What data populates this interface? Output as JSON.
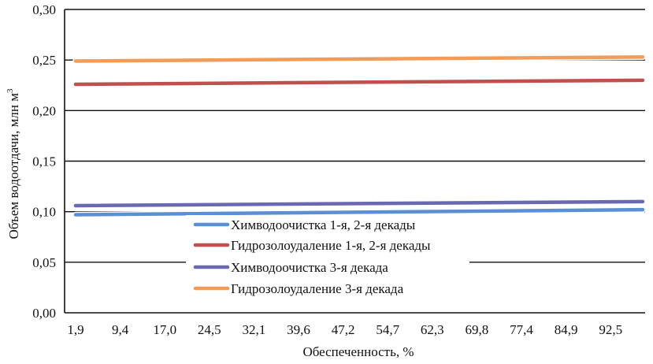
{
  "chart_data": {
    "type": "line",
    "title": "",
    "xlabel": "Обеспеченность, %",
    "ylabel": "Объем водоотдачи, млн м",
    "ylabel_sup": "3",
    "x_tick_labels": [
      "1,9",
      "9,4",
      "17,0",
      "24,5",
      "32,1",
      "39,6",
      "47,2",
      "54,7",
      "62,3",
      "69,8",
      "77,4",
      "84,9",
      "92,5"
    ],
    "y_tick_labels": [
      "0,00",
      "0,05",
      "0,10",
      "0,15",
      "0,20",
      "0,25",
      "0,30"
    ],
    "ylim": [
      0,
      0.3
    ],
    "grid": "horizontal",
    "legend_position": "center-left",
    "series": [
      {
        "name": "Химводоочистка 1-я, 2-я декады",
        "color": "#5b8fd4",
        "x_range": [
          1.9,
          98.1
        ],
        "values": [
          0.097,
          0.102
        ]
      },
      {
        "name": "Гидрозолоудаление 1-я, 2-я декады",
        "color": "#c0504d",
        "x_range": [
          1.9,
          98.1
        ],
        "values": [
          0.226,
          0.23
        ]
      },
      {
        "name": "Химводоочистка 3-я декада",
        "color": "#6a68b0",
        "x_range": [
          1.9,
          98.1
        ],
        "values": [
          0.106,
          0.11
        ]
      },
      {
        "name": "Гидрозолоудаление 3-я декада",
        "color": "#f39c5a",
        "x_range": [
          1.9,
          98.1
        ],
        "values": [
          0.249,
          0.253
        ]
      }
    ]
  }
}
